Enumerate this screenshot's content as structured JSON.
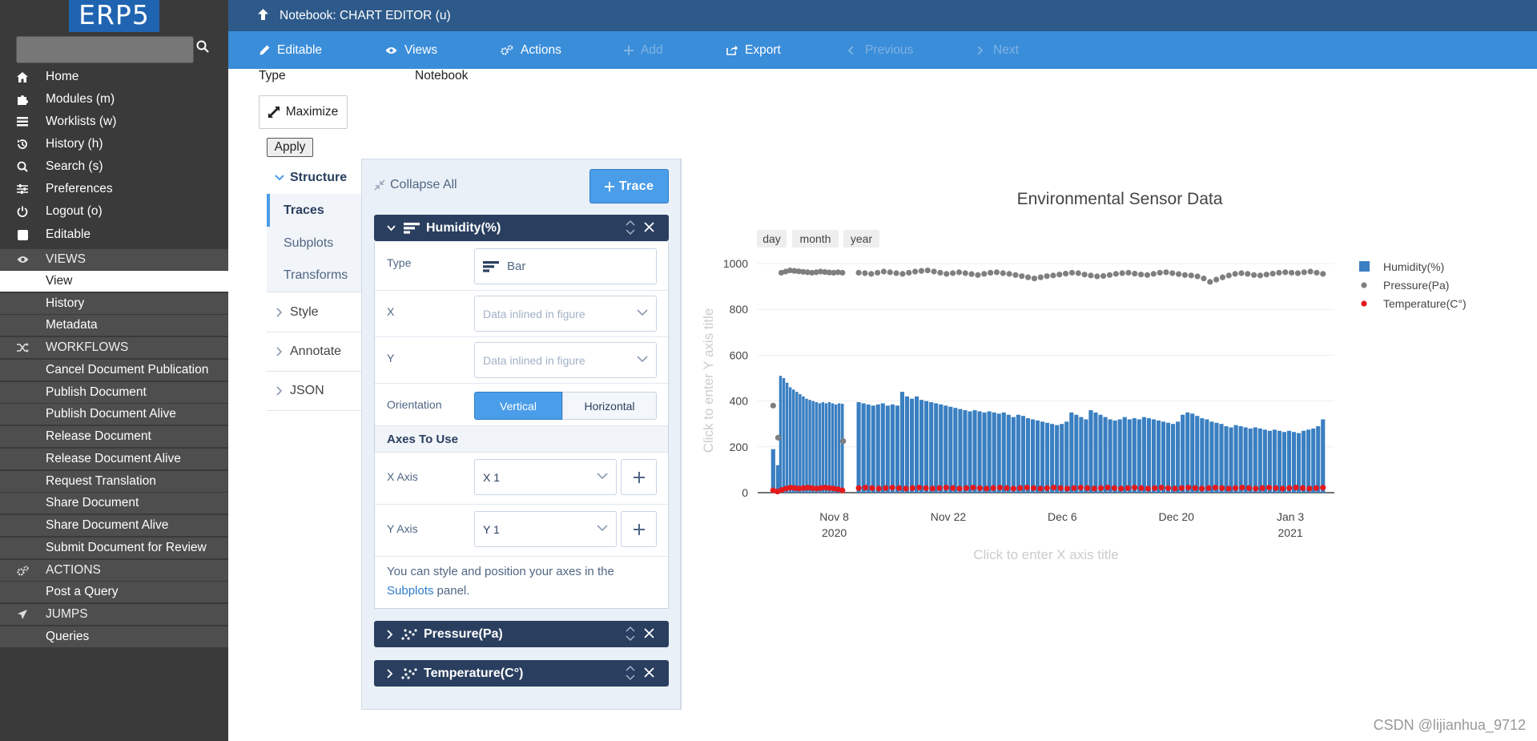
{
  "sidebar": {
    "logo": "ERP5",
    "search": {
      "value": "",
      "placeholder": ""
    },
    "items": [
      {
        "label": "Home",
        "icon": "home-icon"
      },
      {
        "label": "Modules (m)",
        "icon": "puzzle-icon"
      },
      {
        "label": "Worklists (w)",
        "icon": "list-icon"
      },
      {
        "label": "History (h)",
        "icon": "history-icon"
      },
      {
        "label": "Search (s)",
        "icon": "search-icon"
      },
      {
        "label": "Preferences",
        "icon": "sliders-icon"
      },
      {
        "label": "Logout (o)",
        "icon": "power-icon"
      },
      {
        "label": "Editable",
        "icon": "checkbox-icon"
      }
    ],
    "views_header": "VIEWS",
    "views": [
      "View",
      "History",
      "Metadata"
    ],
    "workflows_header": "WORKFLOWS",
    "workflows": [
      "Cancel Document Publication",
      "Publish Document",
      "Publish Document Alive",
      "Release Document",
      "Release Document Alive",
      "Request Translation",
      "Share Document",
      "Share Document Alive",
      "Submit Document for Review"
    ],
    "actions_header": "ACTIONS",
    "actions": [
      "Post a Query"
    ],
    "jumps_header": "JUMPS",
    "jumps": [
      "Queries"
    ]
  },
  "header": {
    "title": "Notebook: CHART EDITOR (u)"
  },
  "toolbar": {
    "editable": "Editable",
    "views": "Views",
    "actions": "Actions",
    "add": "Add",
    "export": "Export",
    "previous": "Previous",
    "next": "Next"
  },
  "document": {
    "type_label": "Type",
    "type_value": "Notebook",
    "maximize": "Maximize",
    "apply": "Apply"
  },
  "editor": {
    "nav": {
      "structure": "Structure",
      "traces": "Traces",
      "subplots": "Subplots",
      "transforms": "Transforms",
      "style": "Style",
      "annotate": "Annotate",
      "json": "JSON"
    },
    "collapse_all": "Collapse All",
    "trace_button": "Trace",
    "traces": [
      {
        "name": "Humidity(%)"
      },
      {
        "name": "Pressure(Pa)"
      },
      {
        "name": "Temperature(C°)"
      }
    ],
    "humidity_panel": {
      "type_label": "Type",
      "type_value": "Bar",
      "x_label": "X",
      "x_placeholder": "Data inlined in figure",
      "y_label": "Y",
      "y_placeholder": "Data inlined in figure",
      "orientation_label": "Orientation",
      "orientation_options": [
        "Vertical",
        "Horizontal"
      ],
      "orientation_selected": "Vertical",
      "axes_header": "Axes To Use",
      "x_axis_label": "X Axis",
      "x_axis_value": "X 1",
      "y_axis_label": "Y Axis",
      "y_axis_value": "Y 1",
      "info_text": "You can style and position your axes in the",
      "info_link": "Subplots",
      "info_suffix": "panel."
    }
  },
  "chart_data": {
    "type": "bar",
    "title": "Environmental Sensor Data",
    "xlabel": "Click to enter X axis title",
    "ylabel": "Click to enter Y axis title",
    "ylim": [
      0,
      1000
    ],
    "yticks": [
      0,
      200,
      400,
      600,
      800,
      1000
    ],
    "xticks": [
      {
        "line1": "Nov 8",
        "line2": "2020",
        "day": 8
      },
      {
        "line1": "Nov 22",
        "line2": "",
        "day": 22
      },
      {
        "line1": "Dec 6",
        "line2": "",
        "day": 36
      },
      {
        "line1": "Dec 20",
        "line2": "",
        "day": 50
      },
      {
        "line1": "Jan 3",
        "line2": "2021",
        "day": 64
      }
    ],
    "xlim_days": [
      -1.4,
      69.4
    ],
    "range_selector": [
      "day",
      "month",
      "year"
    ],
    "legend": [
      "Humidity(%)",
      "Pressure(Pa)",
      "Temperature(C°)"
    ],
    "series": [
      {
        "name": "Humidity(%)",
        "kind": "bar",
        "color": "#3a7fc1",
        "segments": [
          {
            "start_day": 0.5,
            "end_day": 1.1,
            "values": [
              190,
              120
            ]
          },
          {
            "start_day": 1.4,
            "end_day": 9.0,
            "values": [
              510,
              500,
              480,
              460,
              450,
              440,
              430,
              420,
              410,
              405,
              400,
              395,
              390,
              395,
              390,
              395,
              390,
              385,
              390,
              388
            ]
          },
          {
            "start_day": 11.0,
            "end_day": 68.0,
            "values": [
              395,
              390,
              385,
              380,
              385,
              390,
              380,
              385,
              380,
              440,
              420,
              410,
              420,
              405,
              400,
              395,
              390,
              385,
              380,
              375,
              370,
              365,
              360,
              355,
              360,
              355,
              350,
              355,
              350,
              345,
              350,
              340,
              330,
              340,
              335,
              325,
              320,
              315,
              310,
              305,
              300,
              295,
              300,
              310,
              350,
              340,
              330,
              320,
              360,
              350,
              340,
              330,
              320,
              315,
              320,
              330,
              320,
              325,
              320,
              330,
              325,
              320,
              315,
              310,
              305,
              300,
              310,
              340,
              350,
              345,
              335,
              325,
              320,
              310,
              305,
              300,
              290,
              285,
              295,
              290,
              285,
              280,
              285,
              280,
              275,
              270,
              275,
              270,
              265,
              270,
              265,
              260,
              270,
              275,
              280,
              290,
              320
            ]
          }
        ]
      },
      {
        "name": "Pressure(Pa)",
        "kind": "scatter",
        "color": "#7f7f7f",
        "segments": [
          {
            "start_day": 0.5,
            "end_day": 0.5,
            "values": [
              380
            ]
          },
          {
            "start_day": 1.1,
            "end_day": 1.1,
            "values": [
              240
            ]
          },
          {
            "start_day": 1.5,
            "end_day": 9.0,
            "values": [
              960,
              965,
              970,
              968,
              966,
              964,
              962,
              960,
              962,
              965,
              963,
              961,
              960,
              962,
              960
            ]
          },
          {
            "start_day": 9.1,
            "end_day": 9.1,
            "values": [
              225
            ]
          },
          {
            "start_day": 11.0,
            "end_day": 68.0,
            "values": [
              960,
              958,
              955,
              960,
              965,
              962,
              958,
              955,
              960,
              965,
              968,
              970,
              965,
              960,
              955,
              958,
              962,
              958,
              954,
              950,
              955,
              960,
              962,
              958,
              955,
              950,
              945,
              940,
              935,
              940,
              945,
              948,
              952,
              956,
              960,
              958,
              952,
              948,
              944,
              946,
              950,
              955,
              958,
              960,
              956,
              952,
              950,
              955,
              960,
              962,
              958,
              954,
              950,
              948,
              944,
              935,
              920,
              930,
              940,
              948,
              955,
              958,
              955,
              950,
              948,
              952,
              956,
              960,
              962,
              960,
              958,
              962,
              965,
              960,
              955
            ]
          }
        ]
      },
      {
        "name": "Temperature(C°)",
        "kind": "scatter",
        "color": "#e41a1c",
        "segments": [
          {
            "start_day": 0.5,
            "end_day": 9.0,
            "values": [
              10,
              5,
              12,
              18,
              22,
              20,
              18,
              20,
              22,
              20,
              18,
              20,
              22,
              20,
              18,
              15,
              10
            ]
          },
          {
            "start_day": 11.0,
            "end_day": 68.0,
            "values": [
              20,
              22,
              20,
              18,
              20,
              22,
              20,
              18,
              20,
              22,
              20,
              18,
              20,
              22,
              20,
              18,
              20,
              22,
              20,
              18,
              20,
              22,
              20,
              18,
              20,
              22,
              20,
              18,
              20,
              22,
              20,
              18,
              20,
              22,
              20,
              18,
              20,
              22,
              20,
              18,
              20,
              22,
              20,
              18,
              20,
              22,
              20,
              18,
              20,
              22,
              20,
              18,
              20,
              22,
              20,
              18,
              20,
              22,
              20,
              18,
              20,
              22,
              20,
              18,
              20,
              22,
              20,
              18,
              20,
              22
            ]
          }
        ]
      }
    ]
  },
  "watermark": "CSDN @lijianhua_9712"
}
